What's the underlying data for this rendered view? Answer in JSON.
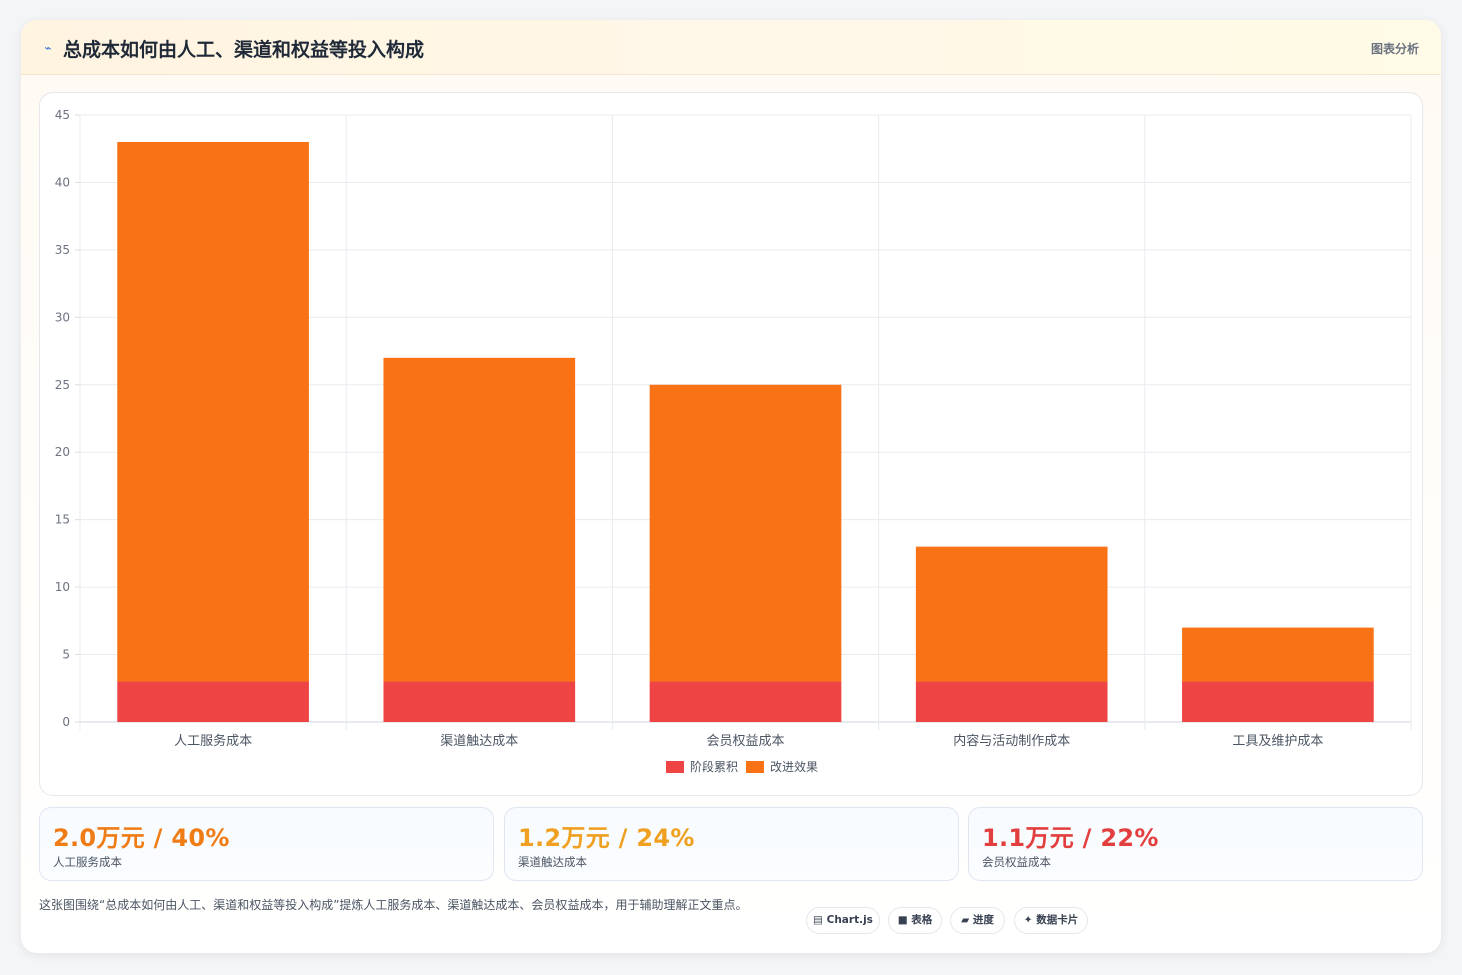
{
  "header": {
    "icon": "trend-icon",
    "title": "总成本如何由人工、渠道和权益等投入构成",
    "tag": "图表分析"
  },
  "chart_data": {
    "type": "bar",
    "stacked": true,
    "categories": [
      "人工服务成本",
      "渠道触达成本",
      "会员权益成本",
      "内容与活动制作成本",
      "工具及维护成本"
    ],
    "series": [
      {
        "name": "阶段累积",
        "color": "#ef4444",
        "values": [
          3,
          3,
          3,
          3,
          3
        ]
      },
      {
        "name": "改进效果",
        "color": "#f97316",
        "values": [
          40,
          24,
          22,
          10,
          4
        ]
      }
    ],
    "ylim": [
      0,
      45
    ],
    "yticks": [
      0,
      5,
      10,
      15,
      20,
      25,
      30,
      35,
      40,
      45
    ],
    "grid": true,
    "legend": "bottom-center",
    "title": "",
    "xlabel": "",
    "ylabel": ""
  },
  "kpis": [
    {
      "value": "2.0万元 / 40%",
      "label": "人工服务成本",
      "color": "#f07c16"
    },
    {
      "value": "1.2万元 / 24%",
      "label": "渠道触达成本",
      "color": "#f0a020"
    },
    {
      "value": "1.1万元 / 22%",
      "label": "会员权益成本",
      "color": "#e23e3e"
    }
  ],
  "footer": {
    "note": "这张图围绕“总成本如何由人工、渠道和权益等投入构成”提炼人工服务成本、渠道触达成本、会员权益成本，用于辅助理解正文重点。",
    "pills": [
      {
        "icon": "chart-icon",
        "glyph": "▤",
        "label": "Chart.js"
      },
      {
        "icon": "table-icon",
        "glyph": "■",
        "label": "表格"
      },
      {
        "icon": "progress-icon",
        "glyph": "▰",
        "label": "进度"
      },
      {
        "icon": "sparkle-icon",
        "glyph": "✦",
        "label": "数据卡片"
      }
    ]
  }
}
